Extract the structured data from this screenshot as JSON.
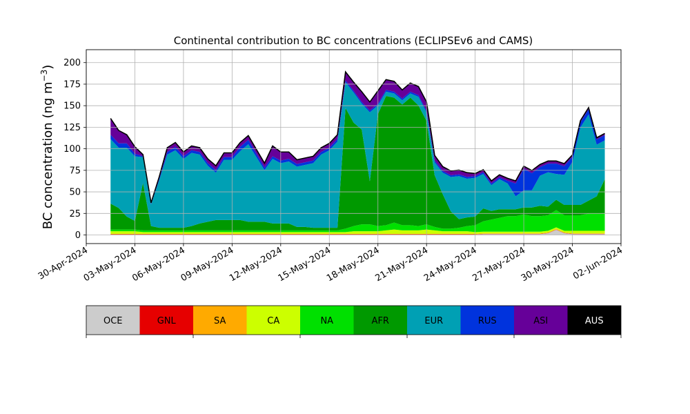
{
  "chart_data": {
    "type": "area",
    "title": "Continental contribution to BC concentrations (ECLIPSEv6 and CAMS)",
    "ylabel": "BC concentration (ng m",
    "ylabel_sup": "−3",
    "ylabel_close": ")",
    "ylim": [
      -10,
      215
    ],
    "yticks": [
      "0",
      "25",
      "50",
      "75",
      "100",
      "125",
      "150",
      "175",
      "200"
    ],
    "ytick_values": [
      0,
      25,
      50,
      75,
      100,
      125,
      150,
      175,
      200
    ],
    "xlim": [
      "2024-04-30T00:00",
      "2024-06-02T00:00"
    ],
    "xticks": [
      "30-Apr-2024",
      "03-May-2024",
      "06-May-2024",
      "09-May-2024",
      "12-May-2024",
      "15-May-2024",
      "18-May-2024",
      "21-May-2024",
      "24-May-2024",
      "27-May-2024",
      "30-May-2024",
      "02-Jun-2024"
    ],
    "xtick_dates": [
      "2024-04-30",
      "2024-05-03",
      "2024-05-06",
      "2024-05-09",
      "2024-05-12",
      "2024-05-15",
      "2024-05-18",
      "2024-05-21",
      "2024-05-24",
      "2024-05-27",
      "2024-05-30",
      "2024-06-02"
    ],
    "grid": true,
    "x": [
      "2024-05-01T12:00",
      "2024-05-02T00:00",
      "2024-05-02T12:00",
      "2024-05-03T00:00",
      "2024-05-03T12:00",
      "2024-05-04T00:00",
      "2024-05-04T12:00",
      "2024-05-05T00:00",
      "2024-05-05T12:00",
      "2024-05-06T00:00",
      "2024-05-06T12:00",
      "2024-05-07T00:00",
      "2024-05-07T12:00",
      "2024-05-08T00:00",
      "2024-05-08T12:00",
      "2024-05-09T00:00",
      "2024-05-09T12:00",
      "2024-05-10T00:00",
      "2024-05-10T12:00",
      "2024-05-11T00:00",
      "2024-05-11T12:00",
      "2024-05-12T00:00",
      "2024-05-12T12:00",
      "2024-05-13T00:00",
      "2024-05-13T12:00",
      "2024-05-14T00:00",
      "2024-05-14T12:00",
      "2024-05-15T00:00",
      "2024-05-15T12:00",
      "2024-05-16T00:00",
      "2024-05-16T12:00",
      "2024-05-17T00:00",
      "2024-05-17T12:00",
      "2024-05-18T00:00",
      "2024-05-18T12:00",
      "2024-05-19T00:00",
      "2024-05-19T12:00",
      "2024-05-20T00:00",
      "2024-05-20T12:00",
      "2024-05-21T00:00",
      "2024-05-21T12:00",
      "2024-05-22T00:00",
      "2024-05-22T12:00",
      "2024-05-23T00:00",
      "2024-05-23T12:00",
      "2024-05-24T00:00",
      "2024-05-24T12:00",
      "2024-05-25T00:00",
      "2024-05-25T12:00",
      "2024-05-26T00:00",
      "2024-05-26T12:00",
      "2024-05-27T00:00",
      "2024-05-27T12:00",
      "2024-05-28T00:00",
      "2024-05-28T12:00",
      "2024-05-29T00:00",
      "2024-05-29T12:00",
      "2024-05-30T00:00",
      "2024-05-30T12:00",
      "2024-05-31T00:00",
      "2024-05-31T12:00",
      "2024-06-01T00:00"
    ],
    "series": [
      {
        "name": "OCE",
        "color": "#cccccc",
        "values": [
          0.5,
          0.5,
          0.5,
          0.5,
          0.5,
          0.5,
          0.5,
          0.5,
          0.5,
          0.5,
          0.5,
          0.5,
          0.5,
          0.5,
          0.5,
          0.5,
          0.5,
          0.5,
          0.5,
          0.5,
          0.5,
          0.5,
          0.5,
          0.5,
          0.5,
          0.5,
          0.5,
          0.5,
          0.5,
          0.5,
          0.5,
          0.5,
          0.5,
          0.5,
          0.5,
          0.5,
          0.5,
          0.5,
          0.5,
          0.5,
          0.5,
          0.5,
          0.5,
          0.5,
          0.5,
          0.5,
          1,
          1,
          1,
          1,
          1,
          1,
          1,
          1,
          2,
          6,
          2,
          1,
          1,
          1,
          1,
          1
        ]
      },
      {
        "name": "GNL",
        "color": "#e60000",
        "values": [
          0.3,
          0.3,
          0.3,
          0.3,
          0.3,
          0.3,
          0.3,
          0.3,
          0.3,
          0.3,
          0.3,
          0.3,
          0.3,
          0.3,
          0.3,
          0.3,
          0.3,
          0.3,
          0.3,
          0.3,
          0.3,
          0.3,
          0.3,
          0.3,
          0.3,
          0.3,
          0.3,
          0.3,
          0.3,
          0.3,
          0.3,
          0.3,
          0.3,
          0.3,
          0.3,
          0.3,
          0.3,
          0.3,
          0.3,
          0.3,
          0.3,
          0.3,
          0.3,
          0.3,
          0.3,
          0.3,
          0.3,
          0.3,
          0.3,
          0.3,
          0.3,
          0.3,
          0.3,
          0.3,
          0.3,
          0.3,
          0.3,
          0.3,
          0.3,
          0.3,
          0.3,
          0.3
        ]
      },
      {
        "name": "SA",
        "color": "#ffaa00",
        "values": [
          0.5,
          0.5,
          0.5,
          0.5,
          0.5,
          0.5,
          0.5,
          0.5,
          0.5,
          0.5,
          0.5,
          0.5,
          0.5,
          0.5,
          0.5,
          0.5,
          0.5,
          0.5,
          0.5,
          0.5,
          0.5,
          0.5,
          0.5,
          0.5,
          0.5,
          0.5,
          0.5,
          0.5,
          0.5,
          0.5,
          0.5,
          0.5,
          0.5,
          0.5,
          0.5,
          0.5,
          0.5,
          0.5,
          0.5,
          0.5,
          0.5,
          0.5,
          0.5,
          0.5,
          0.5,
          0.5,
          0.5,
          0.5,
          0.5,
          0.5,
          0.5,
          0.5,
          0.5,
          0.5,
          0.5,
          0.5,
          0.5,
          0.5,
          0.5,
          0.5,
          0.5,
          0.5
        ]
      },
      {
        "name": "CA",
        "color": "#ccff00",
        "values": [
          3,
          3,
          3,
          3,
          2,
          2,
          2,
          2,
          2,
          2,
          2,
          2,
          2,
          2,
          2,
          2,
          2,
          2,
          2,
          2,
          2,
          2,
          2,
          2,
          2,
          2,
          2,
          2,
          2,
          2,
          3,
          3,
          3,
          3,
          4,
          5,
          4,
          4,
          4,
          5,
          4,
          3,
          3,
          3,
          3,
          2,
          2,
          2,
          2,
          2,
          2,
          2,
          2,
          2,
          2,
          2,
          2,
          3,
          3,
          3,
          3,
          3
        ]
      },
      {
        "name": "NA",
        "color": "#00e000",
        "values": [
          2,
          2,
          2,
          2,
          2,
          2,
          2,
          2,
          2,
          2,
          2,
          2,
          2,
          2,
          2,
          2,
          2,
          2,
          2,
          2,
          2,
          2,
          2,
          2,
          2,
          2,
          2,
          2,
          2,
          4,
          6,
          8,
          8,
          6,
          6,
          8,
          6,
          6,
          5,
          6,
          4,
          3,
          3,
          4,
          6,
          8,
          12,
          14,
          16,
          18,
          18,
          20,
          18,
          18,
          18,
          20,
          18,
          18,
          18,
          20,
          20,
          20
        ]
      },
      {
        "name": "AFR",
        "color": "#009900",
        "values": [
          30,
          25,
          15,
          10,
          55,
          5,
          3,
          3,
          3,
          3,
          5,
          8,
          10,
          12,
          12,
          12,
          12,
          10,
          10,
          10,
          8,
          8,
          8,
          4,
          4,
          3,
          3,
          3,
          3,
          140,
          120,
          110,
          50,
          130,
          150,
          145,
          140,
          148,
          140,
          120,
          60,
          40,
          20,
          10,
          10,
          10,
          15,
          10,
          10,
          8,
          8,
          8,
          10,
          12,
          10,
          12,
          12,
          12,
          12,
          15,
          20,
          40
        ]
      },
      {
        "name": "EUR",
        "color": "#00a0b4",
        "values": [
          75,
          70,
          80,
          75,
          30,
          25,
          55,
          85,
          90,
          80,
          85,
          80,
          65,
          55,
          70,
          70,
          80,
          90,
          75,
          60,
          75,
          70,
          72,
          70,
          72,
          75,
          85,
          90,
          100,
          30,
          35,
          30,
          80,
          10,
          5,
          5,
          5,
          5,
          10,
          10,
          15,
          25,
          40,
          50,
          45,
          45,
          40,
          30,
          35,
          30,
          15,
          20,
          20,
          35,
          40,
          30,
          35,
          50,
          90,
          100,
          60,
          45
        ]
      },
      {
        "name": "RUS",
        "color": "#0033dd",
        "values": [
          5,
          5,
          5,
          3,
          1,
          1,
          2,
          3,
          4,
          3,
          3,
          3,
          3,
          3,
          3,
          3,
          5,
          5,
          4,
          3,
          3,
          3,
          3,
          3,
          3,
          3,
          3,
          3,
          3,
          2,
          2,
          2,
          2,
          2,
          2,
          2,
          2,
          2,
          2,
          2,
          2,
          2,
          2,
          2,
          2,
          2,
          2,
          2,
          2,
          3,
          15,
          25,
          20,
          10,
          10,
          12,
          10,
          6,
          6,
          6,
          6,
          6
        ]
      },
      {
        "name": "ASI",
        "color": "#660099",
        "values": [
          19,
          15,
          10,
          8,
          2,
          1,
          2,
          5,
          5,
          5,
          5,
          5,
          5,
          5,
          5,
          5,
          5,
          5,
          5,
          5,
          12,
          10,
          8,
          5,
          5,
          5,
          5,
          5,
          5,
          10,
          10,
          12,
          10,
          15,
          12,
          12,
          10,
          10,
          10,
          10,
          6,
          5,
          5,
          5,
          5,
          3,
          3,
          3,
          3,
          3,
          3,
          3,
          3,
          3,
          3,
          3,
          3,
          2,
          2,
          2,
          2,
          2
        ]
      },
      {
        "name": "AUS",
        "color": "#000000",
        "values": [
          0,
          0,
          0,
          0,
          0,
          0,
          0,
          0,
          0,
          0,
          0,
          0,
          0,
          0,
          0,
          0,
          0,
          0,
          0,
          0,
          0,
          0,
          0,
          0,
          0,
          0,
          0,
          0,
          0,
          0,
          0,
          0,
          0,
          0,
          0,
          0,
          0,
          0,
          0,
          0,
          0,
          0,
          0,
          0,
          0,
          0,
          0,
          0,
          0,
          0,
          0,
          0,
          0,
          0,
          0,
          0,
          0,
          0,
          0,
          0,
          0,
          0
        ]
      }
    ],
    "legend": {
      "placement": "bottom",
      "entries": [
        "OCE",
        "GNL",
        "SA",
        "CA",
        "NA",
        "AFR",
        "EUR",
        "RUS",
        "ASI",
        "AUS"
      ],
      "colors": [
        "#cccccc",
        "#e60000",
        "#ffaa00",
        "#ccff00",
        "#00e000",
        "#009900",
        "#00a0b4",
        "#0033dd",
        "#660099",
        "#000000"
      ],
      "text_colors": [
        "#000000",
        "#000000",
        "#000000",
        "#000000",
        "#000000",
        "#000000",
        "#000000",
        "#000000",
        "#000000",
        "#ffffff"
      ]
    }
  }
}
